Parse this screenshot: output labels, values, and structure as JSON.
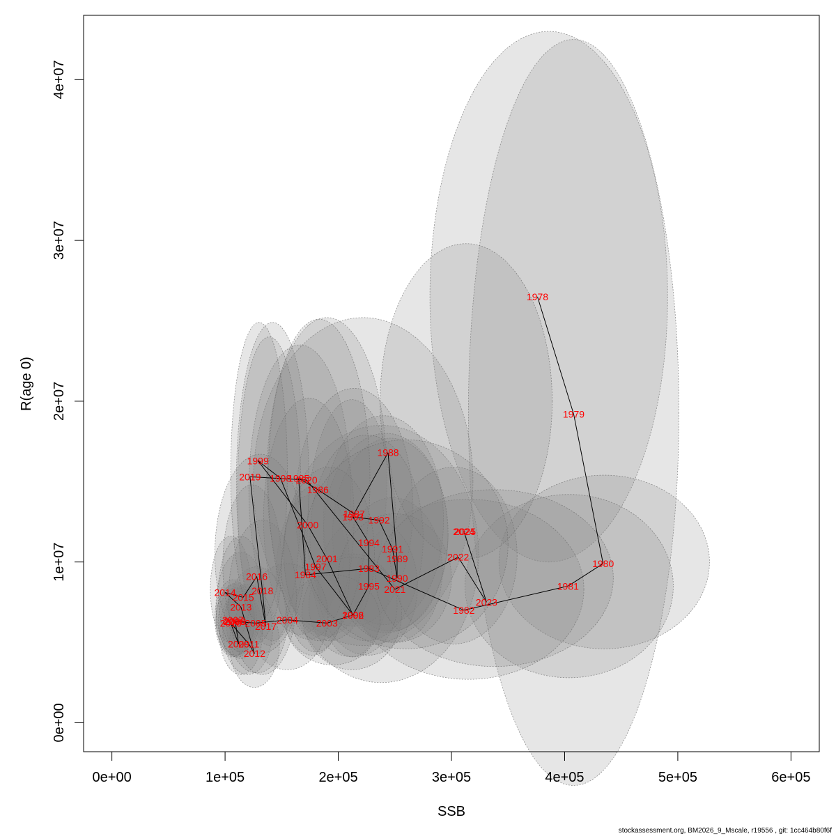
{
  "chart_data": {
    "type": "scatter",
    "xlabel": "SSB",
    "ylabel": "R(age 0)",
    "xlim": [
      -25000,
      625000
    ],
    "ylim": [
      -1800000,
      44000000
    ],
    "x_ticks": [
      0,
      100000,
      200000,
      300000,
      400000,
      500000,
      600000
    ],
    "x_tick_labels": [
      "0e+00",
      "1e+05",
      "2e+05",
      "3e+05",
      "4e+05",
      "5e+05",
      "6e+05"
    ],
    "y_ticks": [
      0,
      10000000,
      20000000,
      30000000,
      40000000
    ],
    "y_tick_labels": [
      "0e+00",
      "1e+07",
      "2e+07",
      "3e+07",
      "4e+07"
    ],
    "grid": false,
    "point_color": "#ff0000",
    "line_color": "#000000",
    "ellipse_color": "#808080",
    "points": [
      {
        "year": "1978",
        "x": 376000,
        "y": 26500000
      },
      {
        "year": "1979",
        "x": 408000,
        "y": 19200000
      },
      {
        "year": "1980",
        "x": 434000,
        "y": 9900000
      },
      {
        "year": "1981",
        "x": 403000,
        "y": 8500000
      },
      {
        "year": "1982",
        "x": 311000,
        "y": 7000000
      },
      {
        "year": "1983",
        "x": 227000,
        "y": 9600000
      },
      {
        "year": "1984",
        "x": 171000,
        "y": 9200000
      },
      {
        "year": "1985",
        "x": 165000,
        "y": 15200000
      },
      {
        "year": "1986",
        "x": 182000,
        "y": 14500000
      },
      {
        "year": "1987",
        "x": 214000,
        "y": 13000000
      },
      {
        "year": "1988",
        "x": 244000,
        "y": 16800000
      },
      {
        "year": "1989",
        "x": 252000,
        "y": 10200000
      },
      {
        "year": "1990",
        "x": 252000,
        "y": 9000000
      },
      {
        "year": "1991",
        "x": 248000,
        "y": 10800000
      },
      {
        "year": "1992",
        "x": 236000,
        "y": 12600000
      },
      {
        "year": "1993",
        "x": 213000,
        "y": 12800000
      },
      {
        "year": "1994",
        "x": 227000,
        "y": 11200000
      },
      {
        "year": "1995",
        "x": 227000,
        "y": 8500000
      },
      {
        "year": "1996",
        "x": 213000,
        "y": 6700000
      },
      {
        "year": "1997",
        "x": 180000,
        "y": 9700000
      },
      {
        "year": "1998",
        "x": 149000,
        "y": 15200000
      },
      {
        "year": "1999",
        "x": 129000,
        "y": 16300000
      },
      {
        "year": "2000",
        "x": 173000,
        "y": 12300000
      },
      {
        "year": "2001",
        "x": 190000,
        "y": 10200000
      },
      {
        "year": "2002",
        "x": 213000,
        "y": 6700000
      },
      {
        "year": "2003",
        "x": 190000,
        "y": 6200000
      },
      {
        "year": "2004",
        "x": 155000,
        "y": 6400000
      },
      {
        "year": "2005",
        "x": 127000,
        "y": 6200000
      },
      {
        "year": "2006",
        "x": 108000,
        "y": 6300000
      },
      {
        "year": "2007",
        "x": 107000,
        "y": 6400000
      },
      {
        "year": "2008",
        "x": 109000,
        "y": 6300000
      },
      {
        "year": "2009",
        "x": 112000,
        "y": 4900000
      },
      {
        "year": "2010",
        "x": 105000,
        "y": 6200000
      },
      {
        "year": "2011",
        "x": 121000,
        "y": 4900000
      },
      {
        "year": "2012",
        "x": 126000,
        "y": 4300000
      },
      {
        "year": "2013",
        "x": 114000,
        "y": 7200000
      },
      {
        "year": "2014",
        "x": 100000,
        "y": 8100000
      },
      {
        "year": "2015",
        "x": 116000,
        "y": 7800000
      },
      {
        "year": "2016",
        "x": 128000,
        "y": 9100000
      },
      {
        "year": "2017",
        "x": 136000,
        "y": 6000000
      },
      {
        "year": "2018",
        "x": 133000,
        "y": 8200000
      },
      {
        "year": "2019",
        "x": 122000,
        "y": 15300000
      },
      {
        "year": "2020",
        "x": 172000,
        "y": 15100000
      },
      {
        "year": "2021",
        "x": 250000,
        "y": 8300000
      },
      {
        "year": "2022",
        "x": 306000,
        "y": 10300000
      },
      {
        "year": "2023",
        "x": 331000,
        "y": 7500000
      },
      {
        "year": "2024",
        "x": 311000,
        "y": 11900000
      },
      {
        "year": "2025",
        "x": 312000,
        "y": 11900000
      }
    ],
    "ellipses": [
      {
        "year": "1978",
        "x": 386000,
        "y": 26500000,
        "rx": 105000,
        "ry": 16500000
      },
      {
        "year": "1979",
        "x": 408000,
        "y": 19300000,
        "rx": 93000,
        "ry": 23200000
      },
      {
        "year": "1980",
        "x": 435000,
        "y": 10000000,
        "rx": 93000,
        "ry": 5400000
      },
      {
        "year": "1981",
        "x": 404000,
        "y": 8500000,
        "rx": 92000,
        "ry": 5700000
      },
      {
        "year": "1982",
        "x": 315000,
        "y": 8300000,
        "rx": 102000,
        "ry": 5600000
      },
      {
        "year": "1983",
        "x": 238000,
        "y": 10500000,
        "rx": 86000,
        "ry": 8000000
      },
      {
        "year": "1984",
        "x": 177000,
        "y": 9200000,
        "rx": 32000,
        "ry": 5000000
      },
      {
        "year": "1985",
        "x": 166000,
        "y": 14500000,
        "rx": 45000,
        "ry": 9000000
      },
      {
        "year": "1986",
        "x": 190000,
        "y": 15300000,
        "rx": 53000,
        "ry": 9900000
      },
      {
        "year": "1987",
        "x": 212000,
        "y": 12100000,
        "rx": 39000,
        "ry": 8000000
      },
      {
        "year": "1988",
        "x": 222000,
        "y": 15000000,
        "rx": 97000,
        "ry": 10200000
      },
      {
        "year": "1989",
        "x": 246000,
        "y": 11700000,
        "rx": 51000,
        "ry": 6000000
      },
      {
        "year": "1990",
        "x": 248000,
        "y": 9500000,
        "rx": 44000,
        "ry": 4500000
      },
      {
        "year": "1991",
        "x": 242000,
        "y": 11800000,
        "rx": 55000,
        "ry": 6200000
      },
      {
        "year": "1992",
        "x": 240000,
        "y": 12600000,
        "rx": 53000,
        "ry": 6500000
      },
      {
        "year": "1993",
        "x": 214000,
        "y": 13400000,
        "rx": 52000,
        "ry": 7400000
      },
      {
        "year": "1994",
        "x": 225000,
        "y": 11500000,
        "rx": 50000,
        "ry": 6400000
      },
      {
        "year": "1995",
        "x": 226000,
        "y": 8500000,
        "rx": 44000,
        "ry": 4300000
      },
      {
        "year": "1996",
        "x": 213000,
        "y": 7300000,
        "rx": 39000,
        "ry": 3200000
      },
      {
        "year": "1997",
        "x": 180000,
        "y": 9600000,
        "rx": 30000,
        "ry": 5200000
      },
      {
        "year": "1998",
        "x": 142000,
        "y": 15000000,
        "rx": 32000,
        "ry": 9900000
      },
      {
        "year": "1999",
        "x": 139000,
        "y": 14400000,
        "rx": 28000,
        "ry": 9600000
      },
      {
        "year": "2000",
        "x": 174000,
        "y": 12700000,
        "rx": 40000,
        "ry": 7500000
      },
      {
        "year": "2001",
        "x": 192000,
        "y": 10500000,
        "rx": 40000,
        "ry": 5400000
      },
      {
        "year": "2002",
        "x": 212000,
        "y": 6800000,
        "rx": 44000,
        "ry": 3500000
      },
      {
        "year": "2003",
        "x": 195000,
        "y": 6400000,
        "rx": 42000,
        "ry": 2800000
      },
      {
        "year": "2004",
        "x": 155000,
        "y": 6600000,
        "rx": 36000,
        "ry": 3300000
      },
      {
        "year": "2005",
        "x": 128000,
        "y": 6400000,
        "rx": 27000,
        "ry": 3300000
      },
      {
        "year": "2006",
        "x": 110000,
        "y": 6400000,
        "rx": 18000,
        "ry": 2300000
      },
      {
        "year": "2007",
        "x": 109000,
        "y": 6400000,
        "rx": 17000,
        "ry": 2200000
      },
      {
        "year": "2008",
        "x": 110000,
        "y": 6300000,
        "rx": 16000,
        "ry": 2100000
      },
      {
        "year": "2009",
        "x": 114000,
        "y": 5600000,
        "rx": 19000,
        "ry": 2600000
      },
      {
        "year": "2010",
        "x": 107000,
        "y": 6500000,
        "rx": 16000,
        "ry": 2400000
      },
      {
        "year": "2011",
        "x": 120000,
        "y": 5800000,
        "rx": 22000,
        "ry": 2800000
      },
      {
        "year": "2012",
        "x": 126000,
        "y": 4900000,
        "rx": 22000,
        "ry": 2700000
      },
      {
        "year": "2013",
        "x": 114000,
        "y": 7300000,
        "rx": 22000,
        "ry": 3300000
      },
      {
        "year": "2014",
        "x": 105000,
        "y": 8300000,
        "rx": 18000,
        "ry": 3300000
      },
      {
        "year": "2015",
        "x": 114000,
        "y": 8000000,
        "rx": 20000,
        "ry": 3600000
      },
      {
        "year": "2016",
        "x": 124000,
        "y": 9800000,
        "rx": 26000,
        "ry": 5000000
      },
      {
        "year": "2017",
        "x": 133000,
        "y": 7800000,
        "rx": 30000,
        "ry": 4800000
      },
      {
        "year": "2018",
        "x": 131000,
        "y": 10500000,
        "rx": 40000,
        "ry": 6200000
      },
      {
        "year": "2019",
        "x": 130000,
        "y": 15600000,
        "rx": 25000,
        "ry": 9300000
      },
      {
        "year": "2020",
        "x": 183000,
        "y": 15100000,
        "rx": 45000,
        "ry": 10000000
      },
      {
        "year": "2021",
        "x": 250000,
        "y": 9000000,
        "rx": 50000,
        "ry": 4000000
      },
      {
        "year": "2022",
        "x": 302000,
        "y": 10400000,
        "rx": 56000,
        "ry": 5500000
      },
      {
        "year": "2023",
        "x": 338000,
        "y": 9000000,
        "rx": 105000,
        "ry": 5500000
      },
      {
        "year": "2024",
        "x": 313000,
        "y": 20000000,
        "rx": 76000,
        "ry": 9800000
      },
      {
        "year": "2025",
        "x": 260000,
        "y": 11100000,
        "rx": 90000,
        "ry": 6500000
      }
    ]
  },
  "footer": {
    "text": "stockassessment.org, BM2026_9_Mscale, r19556 , git: 1cc464b80f6f"
  }
}
